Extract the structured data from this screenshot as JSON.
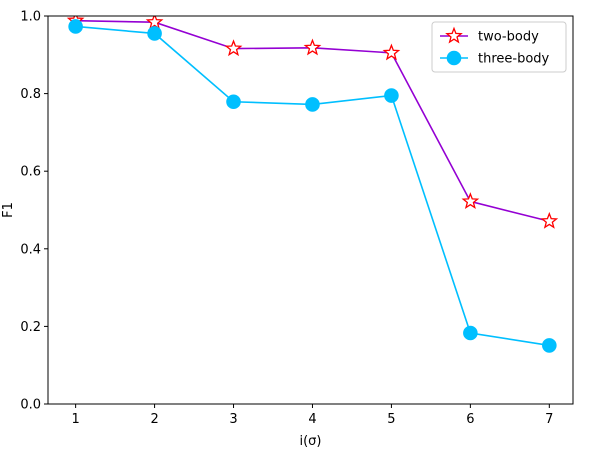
{
  "chart_data": {
    "type": "line",
    "title": "",
    "xlabel": "i(σ)",
    "ylabel": "F1",
    "x": [
      1,
      2,
      3,
      4,
      5,
      6,
      7
    ],
    "xticks": [
      "1",
      "2",
      "3",
      "4",
      "5",
      "6",
      "7"
    ],
    "yticks": [
      "0.0",
      "0.2",
      "0.4",
      "0.6",
      "0.8",
      "1.0"
    ],
    "xlim": [
      0.65,
      7.3
    ],
    "ylim": [
      0.0,
      1.0
    ],
    "grid": false,
    "legend_position": "top-right",
    "series": [
      {
        "name": "two-body",
        "values": [
          0.988,
          0.984,
          0.916,
          0.918,
          0.905,
          0.522,
          0.471
        ],
        "line_color": "#9400d3",
        "marker": "star",
        "marker_edge_color": "#ff0000",
        "marker_face_color": "#ffffff"
      },
      {
        "name": "three-body",
        "values": [
          0.973,
          0.955,
          0.779,
          0.772,
          0.795,
          0.183,
          0.151
        ],
        "line_color": "#00bfff",
        "marker": "circle",
        "marker_edge_color": "#00bfff",
        "marker_face_color": "#00bfff"
      }
    ]
  }
}
